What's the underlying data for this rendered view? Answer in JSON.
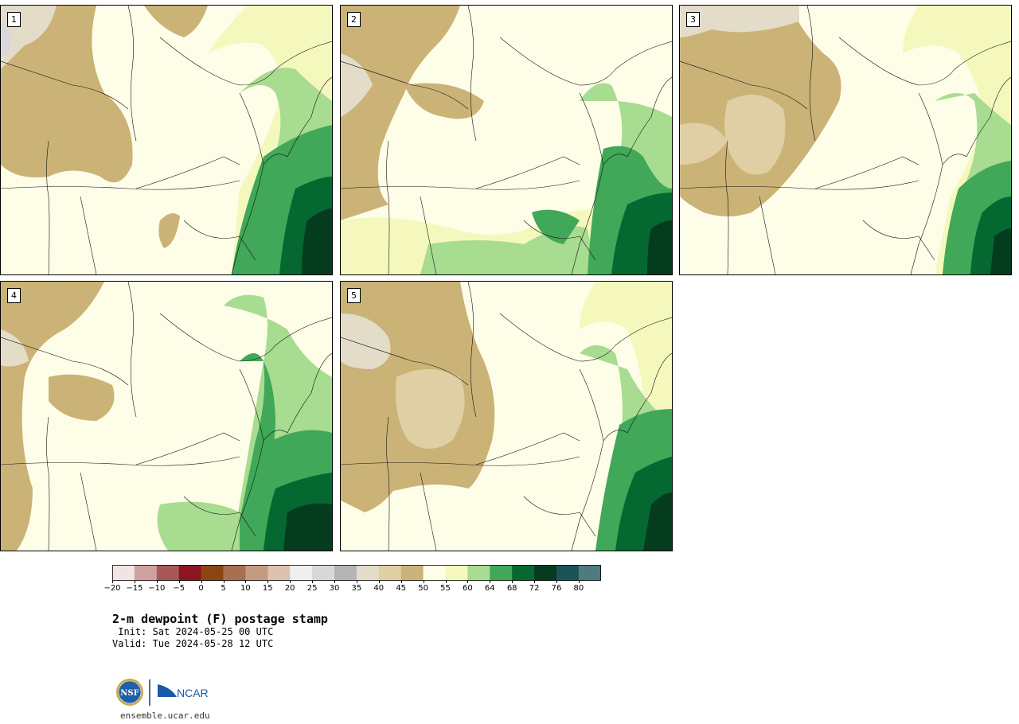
{
  "figure": {
    "title": "2-m dewpoint (F) postage stamp",
    "init": " Init: Sat 2024-05-25 00 UTC",
    "valid": "Valid: Tue 2024-05-28 12 UTC",
    "url": "ensemble.ucar.edu",
    "logos": {
      "nsf": "NSF",
      "ncar": "NCAR"
    }
  },
  "panels": [
    {
      "label": "1"
    },
    {
      "label": "2"
    },
    {
      "label": "3"
    },
    {
      "label": "4"
    },
    {
      "label": "5"
    }
  ],
  "colorbar": {
    "tick_labels": [
      "−20",
      "−15",
      "−10",
      "−5",
      "0",
      "5",
      "10",
      "15",
      "20",
      "25",
      "30",
      "35",
      "40",
      "45",
      "50",
      "55",
      "60",
      "64",
      "68",
      "72",
      "76",
      "80"
    ],
    "colors": [
      "#f0e4e4",
      "#d0a0a0",
      "#a85858",
      "#8b1520",
      "#8b4513",
      "#a87050",
      "#c49a80",
      "#ddc2b0",
      "#eeeeee",
      "#d8d8d8",
      "#b4b4b4",
      "#e2dcc8",
      "#e0cfa4",
      "#cbb276",
      "#fdfde8",
      "#f5f8bc",
      "#a8dc90",
      "#40a858",
      "#056830",
      "#053c20",
      "#1b5457",
      "#4f7b7e"
    ]
  }
}
